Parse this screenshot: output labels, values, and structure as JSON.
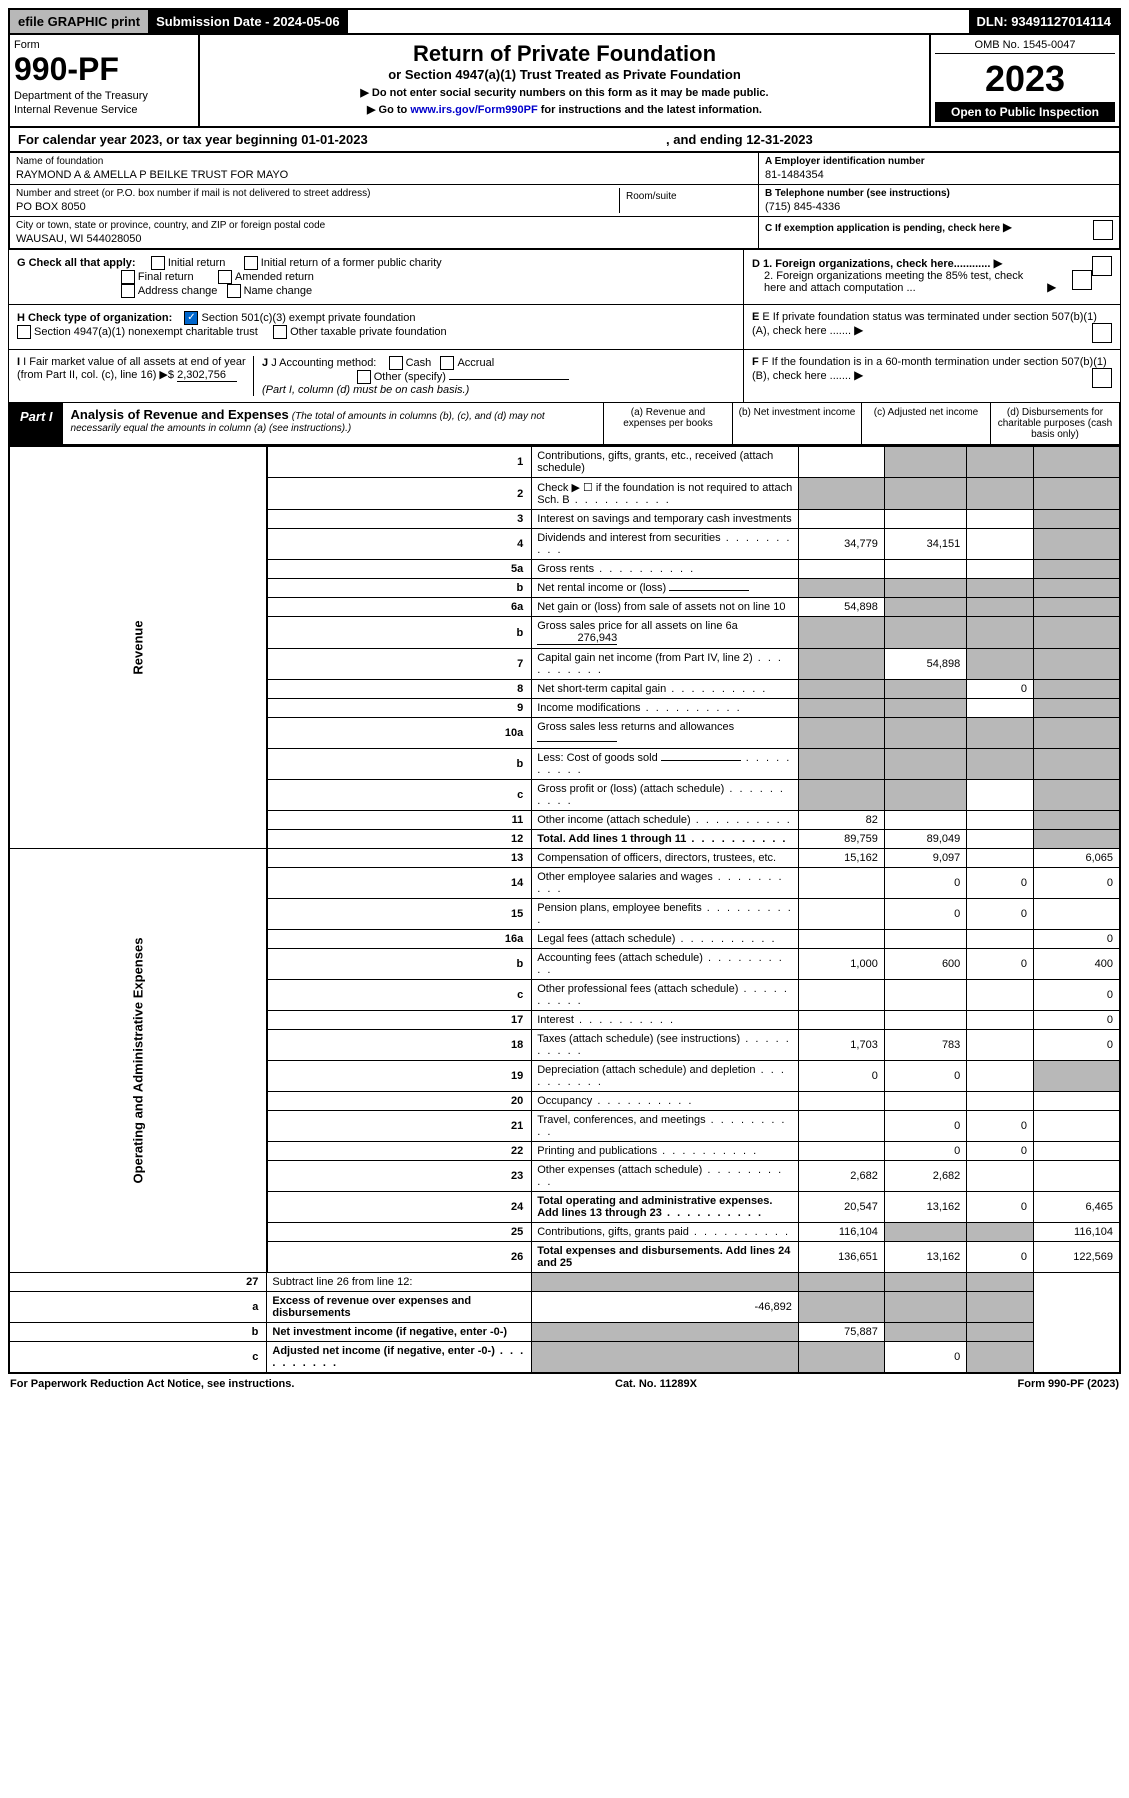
{
  "top_bar": {
    "efile": "efile GRAPHIC print",
    "submission": "Submission Date - 2024-05-06",
    "dln": "DLN: 93491127014114"
  },
  "header": {
    "form_label": "Form",
    "form_number": "990-PF",
    "dept1": "Department of the Treasury",
    "dept2": "Internal Revenue Service",
    "title": "Return of Private Foundation",
    "subtitle": "or Section 4947(a)(1) Trust Treated as Private Foundation",
    "note1": "▶ Do not enter social security numbers on this form as it may be made public.",
    "note2_pre": "▶ Go to ",
    "note2_link": "www.irs.gov/Form990PF",
    "note2_post": " for instructions and the latest information.",
    "omb": "OMB No. 1545-0047",
    "year": "2023",
    "inspection": "Open to Public Inspection"
  },
  "cal_year": {
    "text1": "For calendar year 2023, or tax year beginning 01-01-2023",
    "text2": ", and ending 12-31-2023"
  },
  "info": {
    "name_label": "Name of foundation",
    "name": "RAYMOND A & AMELLA P BEILKE TRUST FOR MAYO",
    "addr_label": "Number and street (or P.O. box number if mail is not delivered to street address)",
    "addr": "PO BOX 8050",
    "suite_label": "Room/suite",
    "city_label": "City or town, state or province, country, and ZIP or foreign postal code",
    "city": "WAUSAU, WI  544028050",
    "ein_label": "A Employer identification number",
    "ein": "81-1484354",
    "phone_label": "B Telephone number (see instructions)",
    "phone": "(715) 845-4336",
    "c_label": "C If exemption application is pending, check here",
    "d1": "D 1. Foreign organizations, check here............",
    "d2": "2. Foreign organizations meeting the 85% test, check here and attach computation ...",
    "e_label": "E  If private foundation status was terminated under section 507(b)(1)(A), check here .......",
    "f_label": "F  If the foundation is in a 60-month termination under section 507(b)(1)(B), check here ......."
  },
  "checks": {
    "g_label": "G Check all that apply:",
    "initial": "Initial return",
    "initial_former": "Initial return of a former public charity",
    "final": "Final return",
    "amended": "Amended return",
    "addr_change": "Address change",
    "name_change": "Name change",
    "h_label": "H Check type of organization:",
    "h1": "Section 501(c)(3) exempt private foundation",
    "h2": "Section 4947(a)(1) nonexempt charitable trust",
    "h3": "Other taxable private foundation",
    "i_label": "I Fair market value of all assets at end of year (from Part II, col. (c), line 16)",
    "i_value": "2,302,756",
    "j_label": "J Accounting method:",
    "j_cash": "Cash",
    "j_accrual": "Accrual",
    "j_other": "Other (specify)",
    "j_note": "(Part I, column (d) must be on cash basis.)"
  },
  "part1": {
    "label": "Part I",
    "title": "Analysis of Revenue and Expenses",
    "title_note": "(The total of amounts in columns (b), (c), and (d) may not necessarily equal the amounts in column (a) (see instructions).)",
    "col_a": "(a)   Revenue and expenses per books",
    "col_b": "(b)   Net investment income",
    "col_c": "(c)   Adjusted net income",
    "col_d": "(d)  Disbursements for charitable purposes (cash basis only)"
  },
  "vlabel_revenue": "Revenue",
  "vlabel_expenses": "Operating and Administrative Expenses",
  "lines": [
    {
      "n": "1",
      "desc": "Contributions, gifts, grants, etc., received (attach schedule)",
      "a": "",
      "b": "shade",
      "c": "shade",
      "d": "shade"
    },
    {
      "n": "2",
      "desc": "Check ▶ ☐ if the foundation is not required to attach Sch. B",
      "a": "shade",
      "b": "shade",
      "c": "shade",
      "d": "shade",
      "dots": true
    },
    {
      "n": "3",
      "desc": "Interest on savings and temporary cash investments",
      "a": "",
      "b": "",
      "c": "",
      "d": "shade"
    },
    {
      "n": "4",
      "desc": "Dividends and interest from securities",
      "a": "34,779",
      "b": "34,151",
      "c": "",
      "d": "shade",
      "dots": true
    },
    {
      "n": "5a",
      "desc": "Gross rents",
      "a": "",
      "b": "",
      "c": "",
      "d": "shade",
      "dots": true
    },
    {
      "n": "b",
      "desc": "Net rental income or (loss)",
      "a": "shade",
      "b": "shade",
      "c": "shade",
      "d": "shade",
      "inline": true
    },
    {
      "n": "6a",
      "desc": "Net gain or (loss) from sale of assets not on line 10",
      "a": "54,898",
      "b": "shade",
      "c": "shade",
      "d": "shade"
    },
    {
      "n": "b",
      "desc": "Gross sales price for all assets on line 6a",
      "a": "shade",
      "b": "shade",
      "c": "shade",
      "d": "shade",
      "inline": true,
      "inline_val": "276,943"
    },
    {
      "n": "7",
      "desc": "Capital gain net income (from Part IV, line 2)",
      "a": "shade",
      "b": "54,898",
      "c": "shade",
      "d": "shade",
      "dots": true
    },
    {
      "n": "8",
      "desc": "Net short-term capital gain",
      "a": "shade",
      "b": "shade",
      "c": "0",
      "d": "shade",
      "dots": true
    },
    {
      "n": "9",
      "desc": "Income modifications",
      "a": "shade",
      "b": "shade",
      "c": "",
      "d": "shade",
      "dots": true
    },
    {
      "n": "10a",
      "desc": "Gross sales less returns and allowances",
      "a": "shade",
      "b": "shade",
      "c": "shade",
      "d": "shade",
      "inline": true
    },
    {
      "n": "b",
      "desc": "Less: Cost of goods sold",
      "a": "shade",
      "b": "shade",
      "c": "shade",
      "d": "shade",
      "inline": true,
      "dots": true
    },
    {
      "n": "c",
      "desc": "Gross profit or (loss) (attach schedule)",
      "a": "shade",
      "b": "shade",
      "c": "",
      "d": "shade",
      "dots": true
    },
    {
      "n": "11",
      "desc": "Other income (attach schedule)",
      "a": "82",
      "b": "",
      "c": "",
      "d": "shade",
      "dots": true
    },
    {
      "n": "12",
      "desc": "Total. Add lines 1 through 11",
      "a": "89,759",
      "b": "89,049",
      "c": "",
      "d": "shade",
      "bold": true,
      "dots": true
    }
  ],
  "exp_lines": [
    {
      "n": "13",
      "desc": "Compensation of officers, directors, trustees, etc.",
      "a": "15,162",
      "b": "9,097",
      "c": "",
      "d": "6,065"
    },
    {
      "n": "14",
      "desc": "Other employee salaries and wages",
      "a": "",
      "b": "0",
      "c": "0",
      "d": "0",
      "dots": true
    },
    {
      "n": "15",
      "desc": "Pension plans, employee benefits",
      "a": "",
      "b": "0",
      "c": "0",
      "d": "",
      "dots": true
    },
    {
      "n": "16a",
      "desc": "Legal fees (attach schedule)",
      "a": "",
      "b": "",
      "c": "",
      "d": "0",
      "dots": true
    },
    {
      "n": "b",
      "desc": "Accounting fees (attach schedule)",
      "a": "1,000",
      "b": "600",
      "c": "0",
      "d": "400",
      "dots": true
    },
    {
      "n": "c",
      "desc": "Other professional fees (attach schedule)",
      "a": "",
      "b": "",
      "c": "",
      "d": "0",
      "dots": true
    },
    {
      "n": "17",
      "desc": "Interest",
      "a": "",
      "b": "",
      "c": "",
      "d": "0",
      "dots": true
    },
    {
      "n": "18",
      "desc": "Taxes (attach schedule) (see instructions)",
      "a": "1,703",
      "b": "783",
      "c": "",
      "d": "0",
      "dots": true
    },
    {
      "n": "19",
      "desc": "Depreciation (attach schedule) and depletion",
      "a": "0",
      "b": "0",
      "c": "",
      "d": "shade",
      "dots": true
    },
    {
      "n": "20",
      "desc": "Occupancy",
      "a": "",
      "b": "",
      "c": "",
      "d": "",
      "dots": true
    },
    {
      "n": "21",
      "desc": "Travel, conferences, and meetings",
      "a": "",
      "b": "0",
      "c": "0",
      "d": "",
      "dots": true
    },
    {
      "n": "22",
      "desc": "Printing and publications",
      "a": "",
      "b": "0",
      "c": "0",
      "d": "",
      "dots": true
    },
    {
      "n": "23",
      "desc": "Other expenses (attach schedule)",
      "a": "2,682",
      "b": "2,682",
      "c": "",
      "d": "",
      "dots": true
    },
    {
      "n": "24",
      "desc": "Total operating and administrative expenses. Add lines 13 through 23",
      "a": "20,547",
      "b": "13,162",
      "c": "0",
      "d": "6,465",
      "bold": true,
      "dots": true
    },
    {
      "n": "25",
      "desc": "Contributions, gifts, grants paid",
      "a": "116,104",
      "b": "shade",
      "c": "shade",
      "d": "116,104",
      "dots": true
    },
    {
      "n": "26",
      "desc": "Total expenses and disbursements. Add lines 24 and 25",
      "a": "136,651",
      "b": "13,162",
      "c": "0",
      "d": "122,569",
      "bold": true
    }
  ],
  "sub_lines": [
    {
      "n": "27",
      "desc": "Subtract line 26 from line 12:",
      "a": "shade",
      "b": "shade",
      "c": "shade",
      "d": "shade"
    },
    {
      "n": "a",
      "desc": "Excess of revenue over expenses and disbursements",
      "a": "-46,892",
      "b": "shade",
      "c": "shade",
      "d": "shade",
      "bold": true
    },
    {
      "n": "b",
      "desc": "Net investment income (if negative, enter -0-)",
      "a": "shade",
      "b": "75,887",
      "c": "shade",
      "d": "shade",
      "bold": true
    },
    {
      "n": "c",
      "desc": "Adjusted net income (if negative, enter -0-)",
      "a": "shade",
      "b": "shade",
      "c": "0",
      "d": "shade",
      "bold": true,
      "dots": true
    }
  ],
  "footer": {
    "left": "For Paperwork Reduction Act Notice, see instructions.",
    "center": "Cat. No. 11289X",
    "right": "Form 990-PF (2023)"
  }
}
